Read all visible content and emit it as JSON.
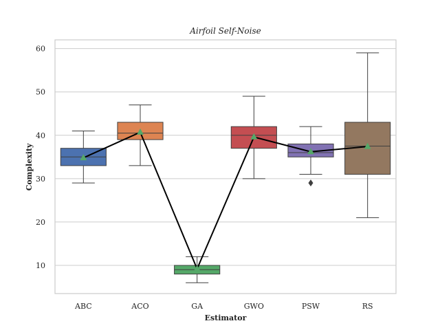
{
  "chart_data": {
    "type": "box",
    "title": "Airfoil Self-Noise",
    "xlabel": "Estimator",
    "ylabel": "Complexity",
    "ylim": [
      3.5,
      62
    ],
    "yticks": [
      10,
      20,
      30,
      40,
      50,
      60
    ],
    "grid": "horizontal",
    "categories": [
      "ABC",
      "ACO",
      "GA",
      "GWO",
      "PSW",
      "RS"
    ],
    "box_colors": [
      "#4c72b0",
      "#dd8452",
      "#55a868",
      "#c44e52",
      "#8172b3",
      "#937860"
    ],
    "mean_marker_color": "#55a868",
    "mean_line_color": "#000000",
    "boxes": [
      {
        "whisker_low": 29,
        "q1": 33,
        "median": 35,
        "q3": 37,
        "whisker_high": 41,
        "mean": 34.8,
        "outliers": []
      },
      {
        "whisker_low": 33,
        "q1": 39,
        "median": 40.5,
        "q3": 43,
        "whisker_high": 47,
        "mean": 40.7,
        "outliers": []
      },
      {
        "whisker_low": 6,
        "q1": 8,
        "median": 9,
        "q3": 10,
        "whisker_high": 12,
        "mean": 9.2,
        "outliers": []
      },
      {
        "whisker_low": 30,
        "q1": 37,
        "median": 40,
        "q3": 42,
        "whisker_high": 49,
        "mean": 39.6,
        "outliers": []
      },
      {
        "whisker_low": 31,
        "q1": 35,
        "median": 36,
        "q3": 38,
        "whisker_high": 42,
        "mean": 36.2,
        "outliers": [
          29
        ]
      },
      {
        "whisker_low": 21,
        "q1": 31,
        "median": 37.5,
        "q3": 43,
        "whisker_high": 59,
        "mean": 37.4,
        "outliers": []
      }
    ]
  }
}
